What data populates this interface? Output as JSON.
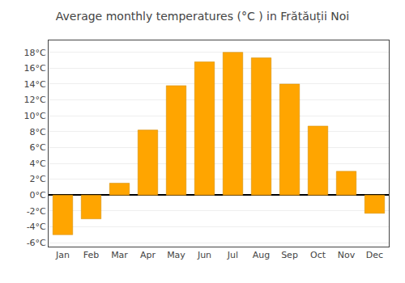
{
  "chart_data": {
    "type": "bar",
    "title": "Average monthly temperatures (°C ) in Frătăuții Noi",
    "categories": [
      "Jan",
      "Feb",
      "Mar",
      "Apr",
      "May",
      "Jun",
      "Jul",
      "Aug",
      "Sep",
      "Oct",
      "Nov",
      "Dec"
    ],
    "values": [
      -5.0,
      -3.0,
      1.5,
      8.2,
      13.8,
      16.8,
      18.0,
      17.3,
      14.0,
      8.7,
      3.0,
      -2.3
    ],
    "color": "#FFA500",
    "ylim": [
      -6.5,
      19.5
    ],
    "yticks": [
      {
        "value": -6,
        "label": "-6°C"
      },
      {
        "value": -4,
        "label": "-4°C"
      },
      {
        "value": -2,
        "label": "-2°C"
      },
      {
        "value": 0,
        "label": "0°C"
      },
      {
        "value": 2,
        "label": "2°C"
      },
      {
        "value": 4,
        "label": "4°C"
      },
      {
        "value": 6,
        "label": "6°C"
      },
      {
        "value": 8,
        "label": "8°C"
      },
      {
        "value": 10,
        "label": "10°C"
      },
      {
        "value": 12,
        "label": "12°C"
      },
      {
        "value": 14,
        "label": "14°C"
      },
      {
        "value": 16,
        "label": "16°C"
      },
      {
        "value": 18,
        "label": "18°C"
      }
    ],
    "grid": true
  }
}
